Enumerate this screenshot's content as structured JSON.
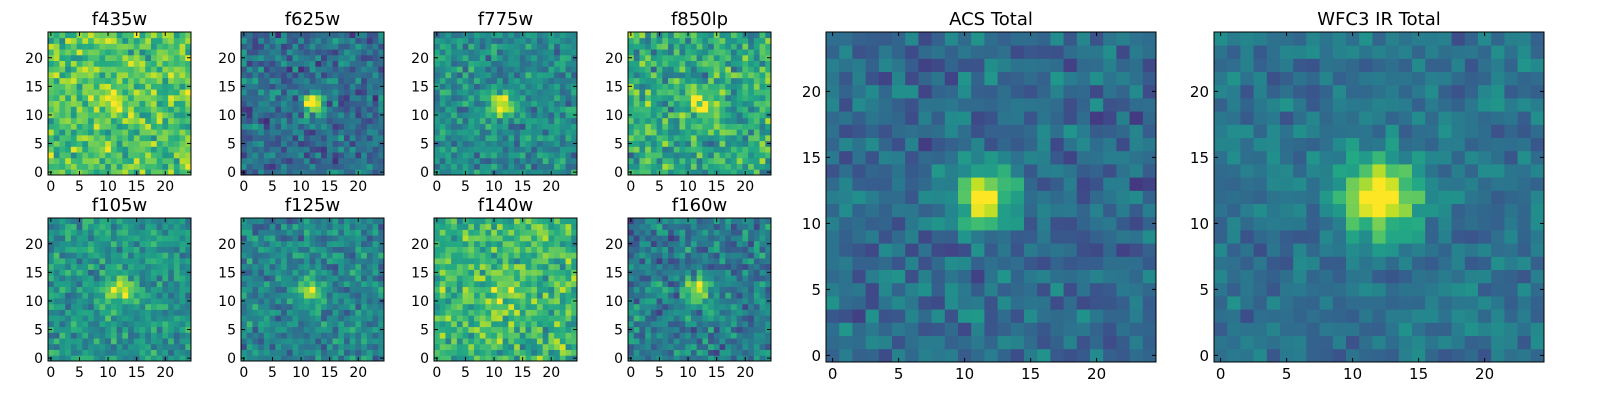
{
  "figure": {
    "colormap": "viridis",
    "frame_color": "#000000"
  },
  "chart_data": [
    {
      "id": "f435w",
      "type": "heatmap",
      "title": "f435w",
      "grid_size": 25,
      "xlim": [
        -0.5,
        24.5
      ],
      "ylim": [
        -0.5,
        24.5
      ],
      "xticks": [
        0,
        5,
        10,
        15,
        20
      ],
      "yticks": [
        0,
        5,
        10,
        15,
        20
      ],
      "source_center": [
        12,
        12
      ],
      "source_width": 2.6,
      "source_amplitude": 0.18,
      "background_level": 0.72,
      "noise_level": 0.18,
      "seed": 11
    },
    {
      "id": "f625w",
      "type": "heatmap",
      "title": "f625w",
      "grid_size": 25,
      "xlim": [
        -0.5,
        24.5
      ],
      "ylim": [
        -0.5,
        24.5
      ],
      "xticks": [
        0,
        5,
        10,
        15,
        20
      ],
      "yticks": [
        0,
        5,
        10,
        15,
        20
      ],
      "source_center": [
        12,
        12
      ],
      "source_width": 1.3,
      "source_amplitude": 0.65,
      "background_level": 0.36,
      "noise_level": 0.16,
      "seed": 23
    },
    {
      "id": "f775w",
      "type": "heatmap",
      "title": "f775w",
      "grid_size": 25,
      "xlim": [
        -0.5,
        24.5
      ],
      "ylim": [
        -0.5,
        24.5
      ],
      "xticks": [
        0,
        5,
        10,
        15,
        20
      ],
      "yticks": [
        0,
        5,
        10,
        15,
        20
      ],
      "source_center": [
        11.5,
        12
      ],
      "source_width": 1.5,
      "source_amplitude": 0.55,
      "background_level": 0.48,
      "noise_level": 0.15,
      "seed": 37
    },
    {
      "id": "f850lp",
      "type": "heatmap",
      "title": "f850lp",
      "grid_size": 25,
      "xlim": [
        -0.5,
        24.5
      ],
      "ylim": [
        -0.5,
        24.5
      ],
      "xticks": [
        0,
        5,
        10,
        15,
        20
      ],
      "yticks": [
        0,
        5,
        10,
        15,
        20
      ],
      "source_center": [
        12,
        12
      ],
      "source_width": 1.8,
      "source_amplitude": 0.35,
      "background_level": 0.6,
      "noise_level": 0.2,
      "seed": 41
    },
    {
      "id": "f105w",
      "type": "heatmap",
      "title": "f105w",
      "grid_size": 25,
      "xlim": [
        -0.5,
        24.5
      ],
      "ylim": [
        -0.5,
        24.5
      ],
      "xticks": [
        0,
        5,
        10,
        15,
        20
      ],
      "yticks": [
        0,
        5,
        10,
        15,
        20
      ],
      "source_center": [
        12,
        12
      ],
      "source_width": 1.6,
      "source_amplitude": 0.45,
      "background_level": 0.52,
      "noise_level": 0.14,
      "seed": 53
    },
    {
      "id": "f125w",
      "type": "heatmap",
      "title": "f125w",
      "grid_size": 25,
      "xlim": [
        -0.5,
        24.5
      ],
      "ylim": [
        -0.5,
        24.5
      ],
      "xticks": [
        0,
        5,
        10,
        15,
        20
      ],
      "yticks": [
        0,
        5,
        10,
        15,
        20
      ],
      "source_center": [
        12,
        12
      ],
      "source_width": 1.7,
      "source_amplitude": 0.45,
      "background_level": 0.45,
      "noise_level": 0.15,
      "seed": 67
    },
    {
      "id": "f140w",
      "type": "heatmap",
      "title": "f140w",
      "grid_size": 25,
      "xlim": [
        -0.5,
        24.5
      ],
      "ylim": [
        -0.5,
        24.5
      ],
      "xticks": [
        0,
        5,
        10,
        15,
        20
      ],
      "yticks": [
        0,
        5,
        10,
        15,
        20
      ],
      "source_center": [
        12,
        12
      ],
      "source_width": 2.2,
      "source_amplitude": 0.2,
      "background_level": 0.66,
      "noise_level": 0.18,
      "seed": 79
    },
    {
      "id": "f160w",
      "type": "heatmap",
      "title": "f160w",
      "grid_size": 25,
      "xlim": [
        -0.5,
        24.5
      ],
      "ylim": [
        -0.5,
        24.5
      ],
      "xticks": [
        0,
        5,
        10,
        15,
        20
      ],
      "yticks": [
        0,
        5,
        10,
        15,
        20
      ],
      "source_center": [
        12,
        12
      ],
      "source_width": 1.6,
      "source_amplitude": 0.5,
      "background_level": 0.42,
      "noise_level": 0.17,
      "seed": 83
    },
    {
      "id": "acs_total",
      "type": "heatmap",
      "title": "ACS Total",
      "grid_size": 25,
      "xlim": [
        -0.5,
        24.5
      ],
      "ylim": [
        -0.5,
        24.5
      ],
      "xticks": [
        0,
        5,
        10,
        15,
        20
      ],
      "yticks": [
        0,
        5,
        10,
        15,
        20
      ],
      "source_center": [
        11.5,
        12
      ],
      "source_width": 1.6,
      "source_amplitude": 0.7,
      "background_level": 0.35,
      "noise_level": 0.12,
      "seed": 97
    },
    {
      "id": "wfc3_ir_total",
      "type": "heatmap",
      "title": "WFC3 IR Total",
      "grid_size": 25,
      "xlim": [
        -0.5,
        24.5
      ],
      "ylim": [
        -0.5,
        24.5
      ],
      "xticks": [
        0,
        5,
        10,
        15,
        20
      ],
      "yticks": [
        0,
        5,
        10,
        15,
        20
      ],
      "source_center": [
        12,
        12
      ],
      "source_width": 2.1,
      "source_amplitude": 0.65,
      "background_level": 0.38,
      "noise_level": 0.1,
      "seed": 101
    }
  ]
}
